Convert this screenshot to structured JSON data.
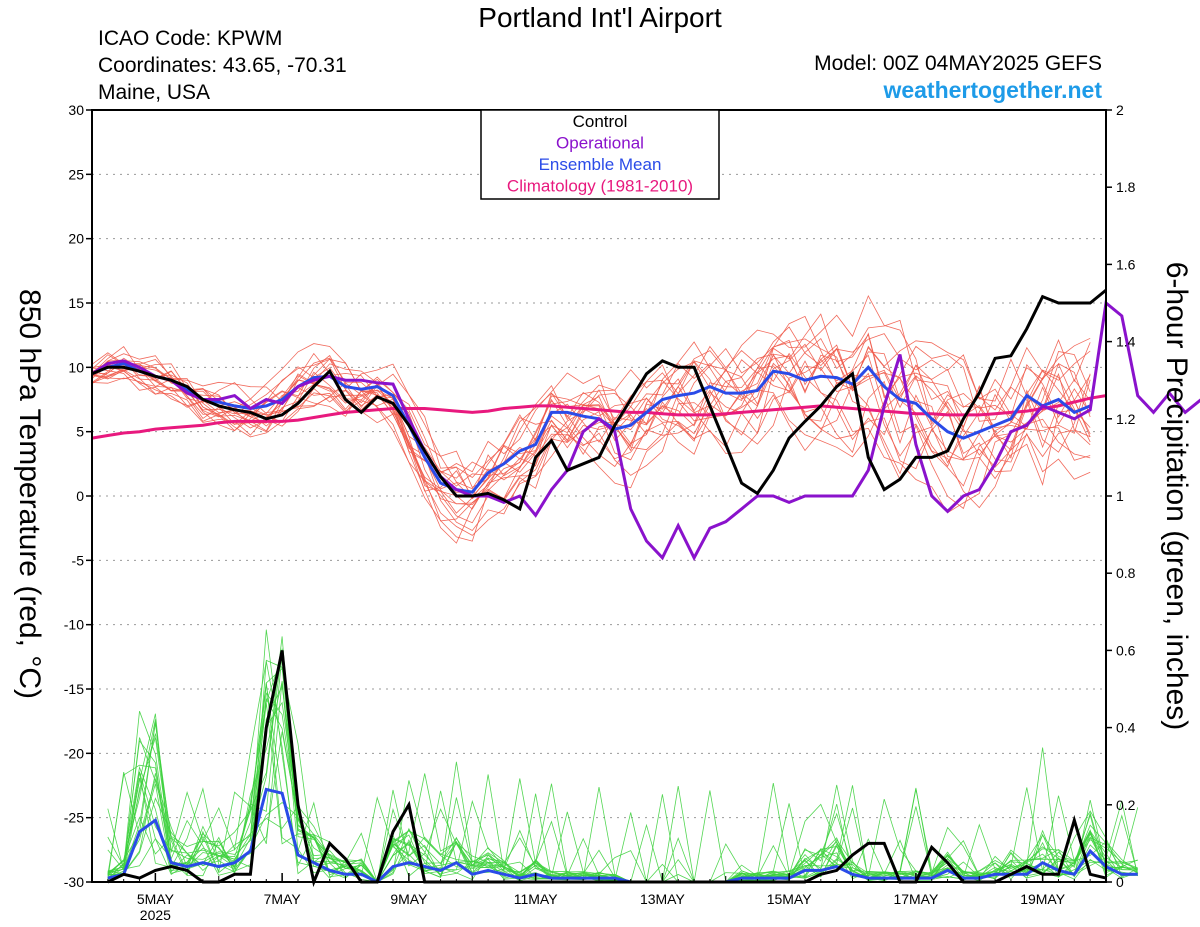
{
  "header": {
    "title": "Portland Int'l Airport",
    "icao": "ICAO Code: KPWM",
    "coordinates": "Coordinates: 43.65, -70.31",
    "region": "Maine, USA",
    "model": "Model: 00Z 04MAY2025 GEFS",
    "site": "weathertogether.net"
  },
  "chart_data": {
    "type": "line",
    "ylabel_left": "850 hPa Temperature (red, °C)",
    "ylabel_right": "6-hour Precipitation (green, inches)",
    "ylim_left": [
      -30,
      30
    ],
    "ylim_right": [
      0,
      2
    ],
    "yticks_left": [
      "30",
      "25",
      "20",
      "15",
      "10",
      "5",
      "0",
      "-5",
      "-10",
      "-15",
      "-20",
      "-25",
      "-30"
    ],
    "yticks_right": [
      "2",
      "1.8",
      "1.6",
      "1.4",
      "1.2",
      "1",
      "0.8",
      "0.6",
      "0.4",
      "0.2",
      "0"
    ],
    "x_range_days": [
      4,
      20
    ],
    "xticks": [
      {
        "day": 5,
        "label": "5MAY",
        "sublabel": "2025"
      },
      {
        "day": 7,
        "label": "7MAY"
      },
      {
        "day": 9,
        "label": "9MAY"
      },
      {
        "day": 11,
        "label": "11MAY"
      },
      {
        "day": 13,
        "label": "13MAY"
      },
      {
        "day": 15,
        "label": "15MAY"
      },
      {
        "day": 17,
        "label": "17MAY"
      },
      {
        "day": 19,
        "label": "19MAY"
      }
    ],
    "grid": "dotted horizontal",
    "legend": {
      "position": "top-center",
      "items": [
        {
          "label": "Control",
          "color": "#000000"
        },
        {
          "label": "Operational",
          "color": "#8a12cc"
        },
        {
          "label": "Ensemble Mean",
          "color": "#2a4be8"
        },
        {
          "label": "Climatology (1981-2010)",
          "color": "#e8197e"
        }
      ]
    },
    "colors": {
      "members_temp": "#f05a4a",
      "members_precip": "#3fd23f",
      "control": "#000000",
      "operational": "#8a12cc",
      "mean": "#2a4be8",
      "climatology": "#e8197e"
    },
    "time_step_hours": 6,
    "temp_series": {
      "start_day": 4,
      "control": [
        9.5,
        10,
        10,
        9.7,
        9.3,
        9,
        8.5,
        7.5,
        7,
        6.7,
        6.5,
        6,
        6.3,
        7.2,
        8.5,
        9.7,
        7.5,
        6.5,
        7.7,
        7.2,
        5.5,
        3.5,
        1.5,
        0,
        0,
        0.2,
        -0.3,
        -1,
        3,
        4.3,
        2,
        2.5,
        3,
        5.5,
        7.5,
        9.5,
        10.5,
        10,
        10,
        7,
        4,
        1,
        0.2,
        2,
        4.5,
        5.8,
        7,
        8.5,
        9.5,
        3,
        0.5,
        1.3,
        3,
        3,
        3.5,
        6,
        8,
        10.7,
        10.9,
        13,
        15.5,
        15,
        15,
        15,
        16
      ],
      "operational": [
        9.5,
        10.3,
        10.5,
        10,
        9.3,
        9,
        8,
        7.5,
        7.5,
        7.8,
        6.8,
        7.5,
        7.2,
        8.5,
        9,
        9.3,
        9,
        9,
        8.8,
        8.7,
        6,
        3.5,
        1.5,
        0.5,
        0,
        0,
        -0.5,
        0,
        -1.5,
        0.5,
        2,
        5,
        6,
        5,
        -1,
        -3.5,
        -4.8,
        -2.3,
        -4.8,
        -2.5,
        -2,
        -1,
        0,
        0,
        -0.5,
        0,
        0,
        0,
        0,
        2,
        7,
        11,
        4,
        0,
        -1.2,
        0,
        0.5,
        2.5,
        5,
        5.5,
        7,
        6.5,
        6,
        6.7,
        15,
        14,
        7.8,
        6.5,
        8,
        6.5,
        7.5,
        7.5
      ],
      "mean": [
        9.5,
        10,
        10.3,
        9.7,
        9.3,
        9,
        8.3,
        7.5,
        7.3,
        7,
        6.8,
        7,
        7.5,
        8.5,
        9.2,
        9.3,
        8.5,
        8.3,
        8.5,
        7.8,
        5.5,
        3,
        1,
        0.5,
        0.3,
        1.8,
        2.5,
        3.5,
        4,
        6.5,
        6.5,
        6.2,
        6,
        5.2,
        5.5,
        6.5,
        7.5,
        7.8,
        8,
        8.5,
        8,
        8,
        8.2,
        9.7,
        9.5,
        9,
        9.3,
        9.2,
        8.7,
        10,
        8.5,
        7.5,
        7.2,
        6,
        5,
        4.5,
        5,
        5.5,
        6,
        7.8,
        7,
        7.5,
        6.5,
        7
      ],
      "climatology": [
        4.5,
        4.7,
        4.9,
        5.0,
        5.2,
        5.3,
        5.4,
        5.5,
        5.7,
        5.8,
        5.8,
        5.8,
        5.8,
        5.9,
        6.1,
        6.3,
        6.5,
        6.6,
        6.7,
        6.8,
        6.8,
        6.8,
        6.7,
        6.6,
        6.5,
        6.6,
        6.8,
        6.9,
        7.0,
        7.0,
        6.9,
        6.8,
        6.7,
        6.6,
        6.5,
        6.5,
        6.4,
        6.3,
        6.3,
        6.3,
        6.4,
        6.5,
        6.6,
        6.7,
        6.8,
        6.9,
        7.0,
        6.9,
        6.8,
        6.7,
        6.6,
        6.5,
        6.4,
        6.4,
        6.3,
        6.3,
        6.3,
        6.4,
        6.5,
        6.6,
        6.8,
        7.0,
        7.3,
        7.6,
        7.8
      ]
    },
    "precip_series": {
      "start_day": 4.25,
      "control": [
        0,
        0.02,
        0.01,
        0.03,
        0.04,
        0.03,
        0,
        0,
        0.02,
        0.02,
        0.4,
        0.6,
        0.2,
        0,
        0.1,
        0.06,
        0,
        0,
        0.13,
        0.2,
        0,
        0,
        0,
        0,
        0,
        0,
        0,
        0,
        0,
        0,
        0,
        0,
        0,
        0,
        0,
        0,
        0,
        0,
        0,
        0,
        0,
        0,
        0,
        0,
        0,
        0.02,
        0.03,
        0.07,
        0.1,
        0.1,
        0,
        0,
        0.09,
        0.05,
        0,
        0,
        0,
        0.02,
        0.04,
        0.02,
        0.02,
        0.16,
        0.02,
        0.01
      ],
      "mean": [
        0.01,
        0.02,
        0.13,
        0.16,
        0.05,
        0.04,
        0.05,
        0.04,
        0.05,
        0.08,
        0.24,
        0.23,
        0.07,
        0.05,
        0.03,
        0.02,
        0.02,
        0,
        0.04,
        0.05,
        0.04,
        0.03,
        0.05,
        0.02,
        0.03,
        0.02,
        0.01,
        0.02,
        0.01,
        0.01,
        0.01,
        0.01,
        0.01,
        0,
        0,
        0,
        0,
        0,
        0,
        0,
        0.01,
        0.01,
        0.01,
        0.01,
        0.03,
        0.03,
        0.04,
        0.02,
        0.01,
        0.01,
        0.01,
        0.01,
        0.01,
        0.03,
        0.01,
        0.01,
        0.02,
        0.02,
        0.02,
        0.05,
        0.03,
        0.02,
        0.08,
        0.04,
        0.02,
        0.02
      ]
    }
  }
}
